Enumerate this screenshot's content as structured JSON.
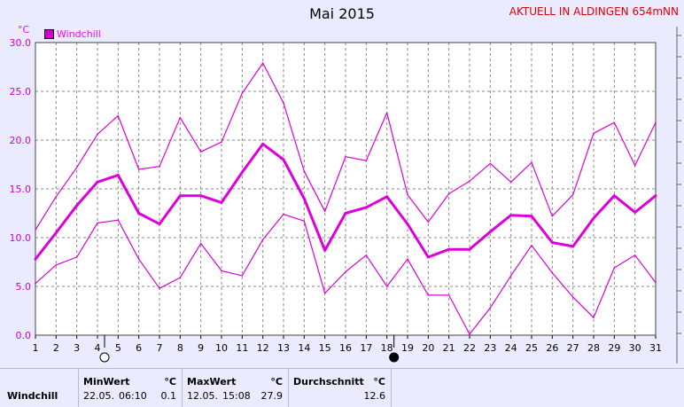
{
  "page": {
    "title": "Mai 2015",
    "station": "AKTUELL IN ALDINGEN 654mNN"
  },
  "chart_data": {
    "type": "line",
    "title": "Mai 2015",
    "ylabel": "°C",
    "ylim": [
      0,
      30
    ],
    "grid": true,
    "legend_position": "top-left",
    "categories": [
      "1",
      "2",
      "3",
      "4",
      "5",
      "6",
      "7",
      "8",
      "9",
      "10",
      "11",
      "12",
      "13",
      "14",
      "15",
      "16",
      "17",
      "18",
      "19",
      "20",
      "21",
      "22",
      "23",
      "24",
      "25",
      "26",
      "27",
      "28",
      "29",
      "30",
      "31"
    ],
    "yticks": [
      "0.0",
      "5.0",
      "10.0",
      "15.0",
      "20.0",
      "25.0",
      "30.0"
    ],
    "series": [
      {
        "name": "Windchill",
        "role": "avg",
        "color": "#dd00dd",
        "values": [
          7.8,
          10.5,
          13.3,
          15.7,
          16.4,
          12.5,
          11.4,
          14.3,
          14.3,
          13.6,
          16.7,
          19.6,
          18.0,
          14.0,
          8.7,
          12.5,
          13.1,
          14.2,
          11.4,
          8.0,
          8.8,
          8.8,
          10.6,
          12.3,
          12.2,
          9.5,
          9.1,
          12.0,
          14.3,
          12.6,
          14.3
        ]
      },
      {
        "role": "max",
        "color": "#dd00dd",
        "values": [
          10.8,
          14.2,
          17.2,
          20.6,
          22.5,
          17.0,
          17.3,
          22.3,
          18.8,
          19.8,
          24.8,
          27.9,
          23.8,
          16.8,
          12.7,
          18.3,
          17.9,
          22.8,
          14.4,
          11.6,
          14.5,
          15.8,
          17.6,
          15.7,
          17.7,
          12.2,
          14.4,
          20.7,
          21.8,
          17.4,
          21.8
        ]
      },
      {
        "role": "min",
        "color": "#dd00dd",
        "values": [
          5.3,
          7.2,
          8.0,
          11.5,
          11.8,
          7.8,
          4.8,
          5.9,
          9.4,
          6.6,
          6.1,
          9.8,
          12.4,
          11.7,
          4.3,
          6.5,
          8.2,
          5.0,
          7.8,
          4.1,
          4.1,
          0.1,
          2.8,
          6.1,
          9.2,
          6.4,
          3.9,
          1.8,
          6.9,
          8.2,
          5.4
        ]
      }
    ],
    "moon_markers": [
      {
        "day": "4",
        "phase": "full"
      },
      {
        "day": "18",
        "phase": "new"
      }
    ]
  },
  "legend": {
    "label": "Windchill"
  },
  "stats": {
    "row_label": "Windchill",
    "min": {
      "header": "MinWert",
      "unit": "°C",
      "date": "22.05.",
      "time": "06:10",
      "value": "0.1"
    },
    "max": {
      "header": "MaxWert",
      "unit": "°C",
      "date": "12.05.",
      "time": "15:08",
      "value": "27.9"
    },
    "avg": {
      "header": "Durchschnitt",
      "unit": "°C",
      "value": "12.6"
    }
  }
}
